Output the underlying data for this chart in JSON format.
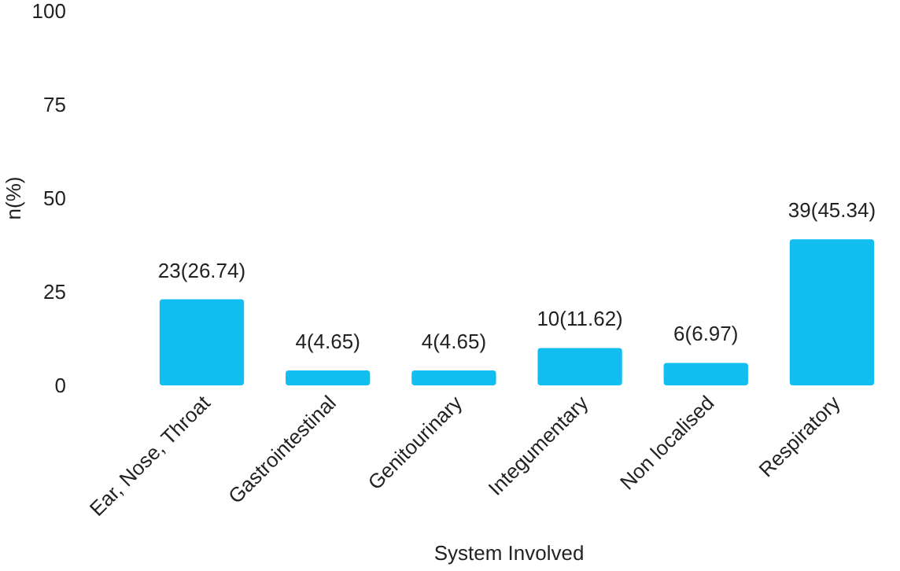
{
  "chart_data": {
    "type": "bar",
    "xlabel": "System Involved",
    "ylabel": "n(%)",
    "categories": [
      "Ear, Nose, Throat",
      "Gastrointestinal",
      "Genitourinary",
      "Integumentary",
      "Non localised",
      "Respiratory"
    ],
    "values": [
      23,
      4,
      4,
      10,
      6,
      39
    ],
    "value_labels": [
      "23(26.74)",
      "4(4.65)",
      "4(4.65)",
      "10(11.62)",
      "6(6.97)",
      "39(45.34)"
    ],
    "color": "#12bdf0",
    "ylim": [
      0,
      100
    ],
    "yticks": [
      0,
      25,
      50,
      75,
      100
    ],
    "grid": false
  }
}
